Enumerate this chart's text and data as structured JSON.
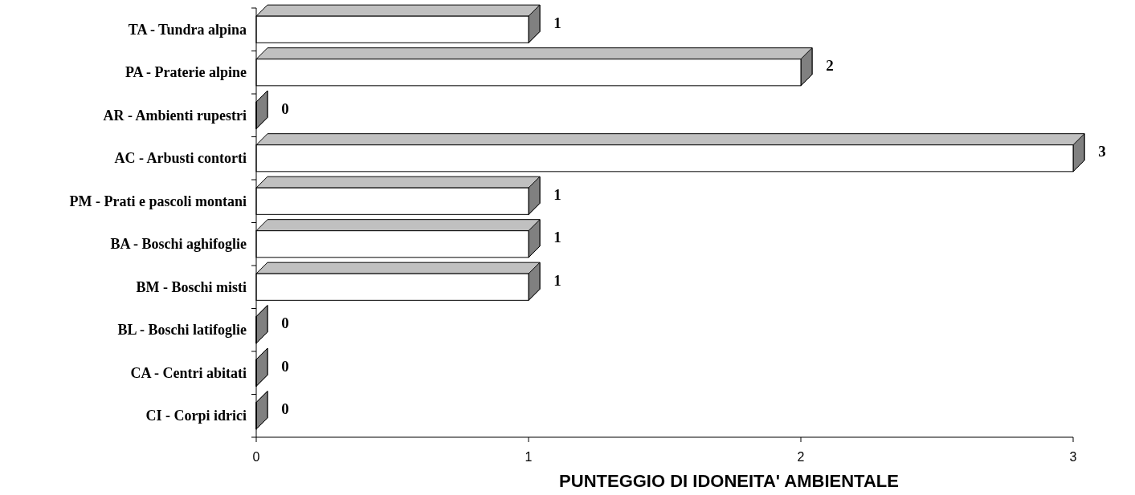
{
  "chart_data": {
    "type": "bar",
    "orientation": "horizontal",
    "xlabel": "PUNTEGGIO DI IDONEITA' AMBIENTALE",
    "categories": [
      "TA - Tundra alpina",
      "PA - Praterie alpine",
      "AR - Ambienti rupestri",
      "AC - Arbusti contorti",
      "PM - Prati e pascoli montani",
      "BA - Boschi aghifoglie",
      "BM - Boschi misti",
      "BL - Boschi latifoglie",
      "CA - Centri abitati",
      "CI - Corpi idrici"
    ],
    "values": [
      1,
      2,
      0,
      3,
      1,
      1,
      1,
      0,
      0,
      0
    ],
    "color": "#ffffff",
    "xlim": [
      0,
      3
    ],
    "xticks": [
      0,
      1,
      2,
      3
    ],
    "grid": false,
    "data_labels": true
  }
}
